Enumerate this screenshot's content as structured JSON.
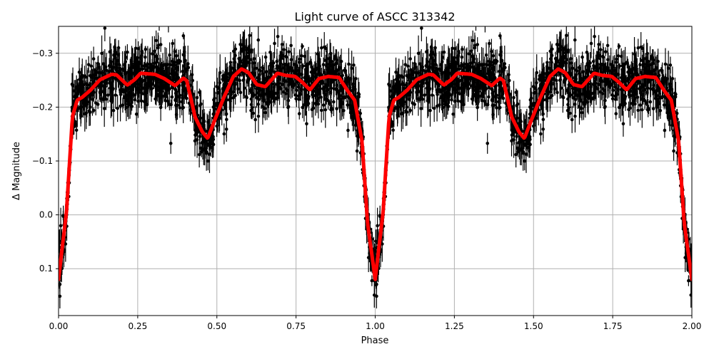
{
  "chart_data": {
    "type": "scatter",
    "title": "Light curve of ASCC 313342",
    "xlabel": "Phase",
    "ylabel": "Δ Magnitude",
    "xlim": [
      0,
      2
    ],
    "ylim": [
      0.187,
      -0.35
    ],
    "y_inverted": true,
    "grid": true,
    "xticks": [
      "0.00",
      "0.25",
      "0.50",
      "0.75",
      "1.00",
      "1.25",
      "1.50",
      "1.75",
      "2.00"
    ],
    "xtick_values": [
      0,
      0.25,
      0.5,
      0.75,
      1,
      1.25,
      1.5,
      1.75,
      2
    ],
    "yticks": [
      "−0.3",
      "−0.2",
      "−0.1",
      "0.0",
      "0.1"
    ],
    "ytick_values": [
      -0.3,
      -0.2,
      -0.1,
      0.0,
      0.1
    ],
    "colors": {
      "points": "#000000",
      "model": "#ff0000",
      "grid": "#b0b0b0"
    },
    "observations": {
      "style": "black points with error bars",
      "phase_folded": true,
      "repeated_twice": true,
      "scatter_sigma": 0.025
    },
    "model_curve": {
      "phase": [
        0.0,
        0.025,
        0.044,
        0.059,
        0.074,
        0.1,
        0.131,
        0.168,
        0.183,
        0.217,
        0.24,
        0.259,
        0.304,
        0.334,
        0.368,
        0.394,
        0.405,
        0.431,
        0.454,
        0.471,
        0.492,
        0.522,
        0.552,
        0.578,
        0.6,
        0.626,
        0.653,
        0.691,
        0.717,
        0.747,
        0.77,
        0.794,
        0.822,
        0.852,
        0.886,
        0.912,
        0.935,
        0.958,
        0.976,
        1.0
      ],
      "magnitude": [
        0.12,
        -0.006,
        -0.183,
        -0.213,
        -0.218,
        -0.231,
        -0.251,
        -0.261,
        -0.26,
        -0.241,
        -0.251,
        -0.263,
        -0.261,
        -0.253,
        -0.24,
        -0.254,
        -0.249,
        -0.182,
        -0.154,
        -0.142,
        -0.174,
        -0.218,
        -0.257,
        -0.271,
        -0.264,
        -0.242,
        -0.238,
        -0.263,
        -0.259,
        -0.257,
        -0.246,
        -0.232,
        -0.253,
        -0.257,
        -0.255,
        -0.231,
        -0.213,
        -0.138,
        0.016,
        0.12
      ]
    }
  }
}
